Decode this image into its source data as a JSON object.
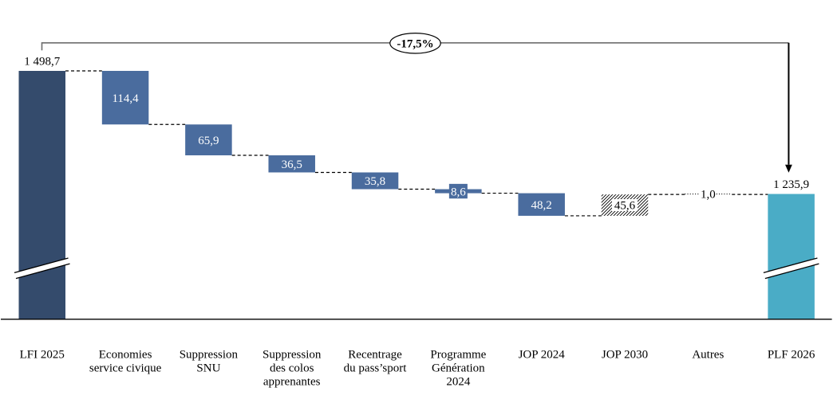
{
  "chart_data": {
    "type": "bar",
    "subtype": "waterfall",
    "title": "",
    "xlabel": "",
    "ylabel": "",
    "grid": false,
    "legend": null,
    "axis_break_marks": true,
    "annotation": {
      "text": "-17,5%",
      "shape": "oval-on-bracket"
    },
    "categories": [
      "LFI 2025",
      "Economies service civique",
      "Suppression SNU",
      "Suppression des colos apprenantes",
      "Recentrage du pass’sport",
      "Programme Génération 2024",
      "JOP 2024",
      "JOP 2030",
      "Autres",
      "PLF 2026"
    ],
    "steps": [
      {
        "category": "LFI 2025",
        "label_lines": [
          "LFI 2025"
        ],
        "role": "start",
        "value": 1498.7,
        "value_label": "1 498,7",
        "value_label_position": "above",
        "style": "solid-navy",
        "axis_break": true
      },
      {
        "category": "Economies service civique",
        "label_lines": [
          "Economies",
          "service civique"
        ],
        "role": "decrease",
        "value": 114.4,
        "value_label": "114,4",
        "value_label_position": "inside",
        "style": "solid-blue"
      },
      {
        "category": "Suppression SNU",
        "label_lines": [
          "Suppression",
          "SNU"
        ],
        "role": "decrease",
        "value": 65.9,
        "value_label": "65,9",
        "value_label_position": "inside",
        "style": "solid-blue"
      },
      {
        "category": "Suppression des colos apprenantes",
        "label_lines": [
          "Suppression",
          "des colos",
          "apprenantes"
        ],
        "role": "decrease",
        "value": 36.5,
        "value_label": "36,5",
        "value_label_position": "inside",
        "style": "solid-blue"
      },
      {
        "category": "Recentrage du pass’sport",
        "label_lines": [
          "Recentrage",
          "du pass’sport"
        ],
        "role": "decrease",
        "value": 35.8,
        "value_label": "35,8",
        "value_label_position": "inside",
        "style": "solid-blue"
      },
      {
        "category": "Programme Génération 2024",
        "label_lines": [
          "Programme",
          "Génération",
          "2024"
        ],
        "role": "decrease",
        "value": 8.6,
        "value_label": "8,6",
        "value_label_position": "badge",
        "style": "solid-blue"
      },
      {
        "category": "JOP 2024",
        "label_lines": [
          "JOP 2024"
        ],
        "role": "decrease",
        "value": 48.2,
        "value_label": "48,2",
        "value_label_position": "inside",
        "style": "solid-blue"
      },
      {
        "category": "JOP 2030",
        "label_lines": [
          "JOP 2030"
        ],
        "role": "increase",
        "value": 45.6,
        "value_label": "45,6",
        "value_label_position": "white-box",
        "style": "hatched"
      },
      {
        "category": "Autres",
        "label_lines": [
          "Autres"
        ],
        "role": "increase",
        "value": 1.0,
        "value_label": "1,0",
        "value_label_position": "on-line",
        "style": "no-bar"
      },
      {
        "category": "PLF 2026",
        "label_lines": [
          "PLF 2026"
        ],
        "role": "end",
        "value": 1235.9,
        "value_label": "1 235,9",
        "value_label_position": "above",
        "style": "solid-teal",
        "axis_break": true
      }
    ],
    "colors": {
      "start_bar": "#344b6c",
      "decrease_bar": "#4a6c9e",
      "end_bar": "#4aacc6",
      "hatch_lines": "#000000",
      "connector": "#000000",
      "axis": "#000000",
      "bracket": "#6e6e6e",
      "arrow": "#000000",
      "value_text_light": "#ffffff",
      "value_text_dark": "#000000"
    }
  }
}
